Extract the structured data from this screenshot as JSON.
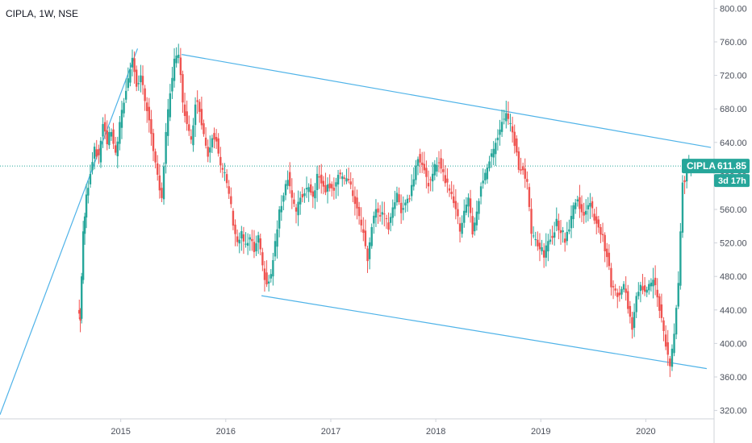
{
  "header": {
    "symbol_line": "CIPLA, 1W, NSE"
  },
  "price_tag": {
    "symbol": "CIPLA",
    "price": "611.85",
    "countdown": "3d 17h"
  },
  "colors": {
    "up": "#26a69a",
    "down": "#ef5350",
    "trendline": "#4fb3e8",
    "price_line": "#26a69a",
    "grid_axis": "#cfd3da",
    "tag_bg": "#26a69a",
    "tag_text": "#ffffff"
  },
  "chart_data": {
    "type": "candlestick",
    "interval": "1W",
    "exchange": "NSE",
    "symbol": "CIPLA",
    "last_price": 611.85,
    "ylim": [
      310,
      810
    ],
    "xlim": [
      2013.85,
      2020.65
    ],
    "y_ticks": [
      "320.00",
      "360.00",
      "400.00",
      "440.00",
      "480.00",
      "520.00",
      "560.00",
      "600.00",
      "640.00",
      "680.00",
      "720.00",
      "760.00",
      "800.00"
    ],
    "x_ticks": [
      "2015",
      "2016",
      "2017",
      "2018",
      "2019",
      "2020"
    ],
    "price_path": [
      [
        2014.6,
        440
      ],
      [
        2014.62,
        430
      ],
      [
        2014.65,
        530
      ],
      [
        2014.68,
        575
      ],
      [
        2014.72,
        605
      ],
      [
        2014.76,
        635
      ],
      [
        2014.8,
        620
      ],
      [
        2014.84,
        665
      ],
      [
        2014.88,
        640
      ],
      [
        2014.92,
        655
      ],
      [
        2014.96,
        625
      ],
      [
        2015.0,
        660
      ],
      [
        2015.04,
        690
      ],
      [
        2015.08,
        715
      ],
      [
        2015.12,
        745
      ],
      [
        2015.16,
        705
      ],
      [
        2015.2,
        720
      ],
      [
        2015.24,
        690
      ],
      [
        2015.28,
        670
      ],
      [
        2015.32,
        625
      ],
      [
        2015.36,
        600
      ],
      [
        2015.4,
        575
      ],
      [
        2015.44,
        650
      ],
      [
        2015.48,
        700
      ],
      [
        2015.52,
        735
      ],
      [
        2015.56,
        745
      ],
      [
        2015.6,
        690
      ],
      [
        2015.64,
        660
      ],
      [
        2015.68,
        640
      ],
      [
        2015.72,
        690
      ],
      [
        2015.76,
        680
      ],
      [
        2015.8,
        650
      ],
      [
        2015.84,
        625
      ],
      [
        2015.88,
        650
      ],
      [
        2015.92,
        645
      ],
      [
        2015.96,
        610
      ],
      [
        2016.0,
        600
      ],
      [
        2016.04,
        580
      ],
      [
        2016.08,
        545
      ],
      [
        2016.12,
        520
      ],
      [
        2016.16,
        530
      ],
      [
        2016.2,
        515
      ],
      [
        2016.24,
        525
      ],
      [
        2016.28,
        510
      ],
      [
        2016.32,
        525
      ],
      [
        2016.36,
        490
      ],
      [
        2016.4,
        470
      ],
      [
        2016.44,
        480
      ],
      [
        2016.48,
        520
      ],
      [
        2016.52,
        555
      ],
      [
        2016.56,
        580
      ],
      [
        2016.6,
        600
      ],
      [
        2016.64,
        575
      ],
      [
        2016.68,
        555
      ],
      [
        2016.72,
        575
      ],
      [
        2016.76,
        580
      ],
      [
        2016.8,
        590
      ],
      [
        2016.84,
        575
      ],
      [
        2016.88,
        600
      ],
      [
        2016.92,
        595
      ],
      [
        2016.96,
        585
      ],
      [
        2017.0,
        590
      ],
      [
        2017.04,
        585
      ],
      [
        2017.08,
        600
      ],
      [
        2017.12,
        595
      ],
      [
        2017.16,
        600
      ],
      [
        2017.2,
        585
      ],
      [
        2017.24,
        570
      ],
      [
        2017.28,
        550
      ],
      [
        2017.32,
        530
      ],
      [
        2017.36,
        500
      ],
      [
        2017.4,
        540
      ],
      [
        2017.44,
        560
      ],
      [
        2017.48,
        555
      ],
      [
        2017.52,
        550
      ],
      [
        2017.56,
        540
      ],
      [
        2017.6,
        565
      ],
      [
        2017.64,
        575
      ],
      [
        2017.68,
        560
      ],
      [
        2017.72,
        570
      ],
      [
        2017.76,
        575
      ],
      [
        2017.8,
        600
      ],
      [
        2017.84,
        625
      ],
      [
        2017.88,
        615
      ],
      [
        2017.92,
        595
      ],
      [
        2017.96,
        590
      ],
      [
        2018.0,
        610
      ],
      [
        2018.04,
        620
      ],
      [
        2018.08,
        600
      ],
      [
        2018.12,
        590
      ],
      [
        2018.16,
        580
      ],
      [
        2018.2,
        560
      ],
      [
        2018.24,
        535
      ],
      [
        2018.28,
        560
      ],
      [
        2018.32,
        575
      ],
      [
        2018.36,
        530
      ],
      [
        2018.4,
        555
      ],
      [
        2018.44,
        590
      ],
      [
        2018.48,
        600
      ],
      [
        2018.52,
        620
      ],
      [
        2018.56,
        630
      ],
      [
        2018.6,
        650
      ],
      [
        2018.64,
        665
      ],
      [
        2018.68,
        675
      ],
      [
        2018.72,
        660
      ],
      [
        2018.76,
        640
      ],
      [
        2018.8,
        610
      ],
      [
        2018.84,
        605
      ],
      [
        2018.88,
        590
      ],
      [
        2018.92,
        530
      ],
      [
        2018.96,
        525
      ],
      [
        2019.0,
        515
      ],
      [
        2019.04,
        505
      ],
      [
        2019.08,
        520
      ],
      [
        2019.12,
        530
      ],
      [
        2019.16,
        545
      ],
      [
        2019.2,
        535
      ],
      [
        2019.24,
        525
      ],
      [
        2019.28,
        540
      ],
      [
        2019.32,
        565
      ],
      [
        2019.36,
        570
      ],
      [
        2019.4,
        555
      ],
      [
        2019.44,
        560
      ],
      [
        2019.48,
        565
      ],
      [
        2019.52,
        550
      ],
      [
        2019.56,
        540
      ],
      [
        2019.6,
        525
      ],
      [
        2019.64,
        505
      ],
      [
        2019.68,
        470
      ],
      [
        2019.72,
        460
      ],
      [
        2019.76,
        455
      ],
      [
        2019.8,
        470
      ],
      [
        2019.84,
        445
      ],
      [
        2019.88,
        420
      ],
      [
        2019.92,
        460
      ],
      [
        2019.96,
        470
      ],
      [
        2020.0,
        465
      ],
      [
        2020.04,
        470
      ],
      [
        2020.08,
        475
      ],
      [
        2020.12,
        455
      ],
      [
        2020.16,
        430
      ],
      [
        2020.2,
        400
      ],
      [
        2020.24,
        370
      ],
      [
        2020.28,
        410
      ],
      [
        2020.32,
        470
      ],
      [
        2020.36,
        590
      ],
      [
        2020.4,
        605
      ],
      [
        2020.44,
        612
      ]
    ],
    "trendlines": [
      {
        "from": [
          2013.85,
          315
        ],
        "to": [
          2015.16,
          752
        ]
      },
      {
        "from": [
          2015.58,
          745
        ],
        "to": [
          2020.62,
          634
        ]
      },
      {
        "from": [
          2016.34,
          457
        ],
        "to": [
          2020.58,
          370
        ]
      }
    ]
  }
}
